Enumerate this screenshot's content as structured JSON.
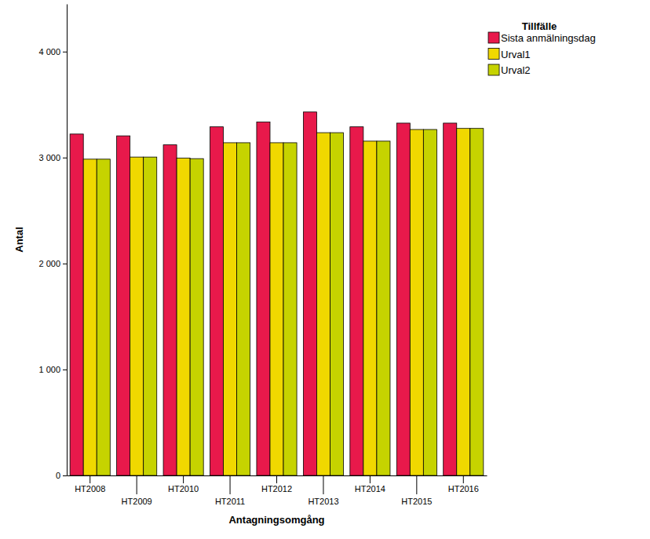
{
  "chart_data": {
    "type": "bar",
    "x_label": "Antagningsomgång",
    "y_label": "Antal",
    "legend_title": "Tillfälle",
    "legend": "top-right",
    "grid": false,
    "categories": [
      "HT2008",
      "HT2009",
      "HT2010",
      "HT2011",
      "HT2012",
      "HT2013",
      "HT2014",
      "HT2015",
      "HT2016"
    ],
    "series": [
      {
        "name": "Sista anmälningsdag",
        "color": "#e8194b",
        "values": [
          3222,
          3205,
          3120,
          3290,
          3335,
          3430,
          3290,
          3325,
          3325
        ]
      },
      {
        "name": "Urval1",
        "color": "#f0d800",
        "values": [
          2985,
          3005,
          2995,
          3140,
          3140,
          3235,
          3155,
          3265,
          3275
        ]
      },
      {
        "name": "Urval2",
        "color": "#c6d300",
        "values": [
          2985,
          3005,
          2990,
          3140,
          3140,
          3235,
          3155,
          3265,
          3275
        ]
      }
    ],
    "ylim": [
      0,
      4450
    ],
    "yticks": [
      0,
      {
        "value": 1000,
        "label": "1 000"
      },
      {
        "value": 2000,
        "label": "2 000"
      },
      {
        "value": 3000,
        "label": "3 000"
      },
      {
        "value": 4000,
        "label": "4 000"
      }
    ]
  }
}
